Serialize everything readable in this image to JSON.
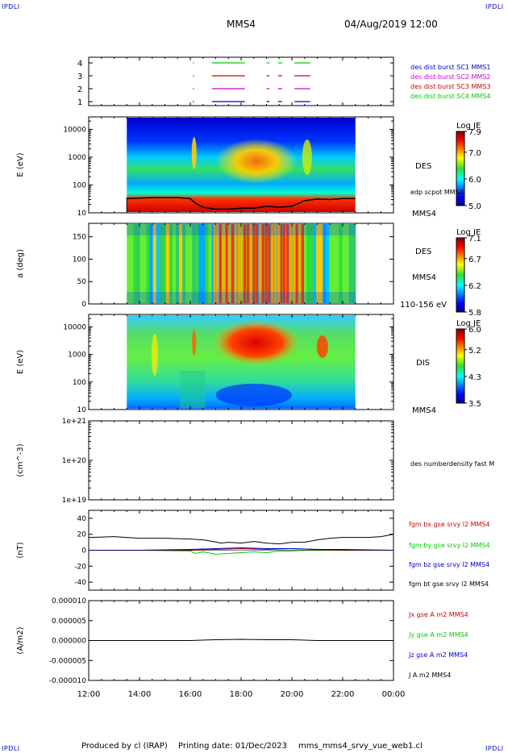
{
  "header": {
    "corner_label": "IPDLI",
    "spacecraft": "MMS4",
    "datetime": "04/Aug/2019 12:00"
  },
  "footer": {
    "produced_by": "Produced by cl (IRAP)",
    "printing_date": "Printing date: 01/Dec/2023",
    "file": "mms_mms4_srvy_vue_web1.cl"
  },
  "time_axis": {
    "ticks": [
      "12:00",
      "14:00",
      "16:00",
      "18:00",
      "20:00",
      "22:00",
      "00:00"
    ],
    "hours": [
      12,
      14,
      16,
      18,
      20,
      22,
      24
    ]
  },
  "colors": {
    "sc1": "#0000cc",
    "sc2": "#cc00cc",
    "sc3": "#cc0000",
    "sc4": "#00cc00",
    "bx": "#cc0000",
    "by": "#00cc00",
    "bz": "#0000cc",
    "bt": "#000000"
  },
  "panels": {
    "burst": {
      "yticks": [
        "1",
        "2",
        "3",
        "4"
      ],
      "legend": [
        "des dist burst SC1 MMS1",
        "des dist burst SC2 MMS2",
        "des dist burst SC3 MMS3",
        "des dist burst SC4 MMS4"
      ]
    },
    "des_energy": {
      "ylabel": "E (eV)",
      "yticks": [
        "10",
        "100",
        "1000",
        "10000"
      ],
      "label": "DES",
      "overlay_label": "edp scpot MMS4",
      "sc_label": "MMS4",
      "colorbar": {
        "title": "Log JE",
        "ticks": [
          "5.0",
          "6.0",
          "7.0",
          "7.9"
        ]
      }
    },
    "des_pitch": {
      "ylabel": "a (deg)",
      "yticks": [
        "0",
        "50",
        "100",
        "150"
      ],
      "label": "DES",
      "sc_label": "MMS4",
      "energy_range": "110-156 eV",
      "colorbar": {
        "title": "Log JE",
        "ticks": [
          "5.8",
          "6.2",
          "6.7",
          "7.1"
        ]
      }
    },
    "dis_energy": {
      "ylabel": "E (eV)",
      "yticks": [
        "10",
        "100",
        "1000",
        "10000"
      ],
      "label": "DIS",
      "sc_label": "MMS4",
      "colorbar": {
        "title": "Log JE",
        "ticks": [
          "3.5",
          "4.3",
          "5.2",
          "6.0"
        ]
      }
    },
    "density": {
      "ylabel": "(cm^-3)",
      "yticks": [
        "1e+19",
        "1e+20",
        "1e+21"
      ],
      "legend": "des numberdensity fast M"
    },
    "fgm": {
      "ylabel": "(nT)",
      "yticks": [
        "-40",
        "-20",
        "0",
        "20",
        "40"
      ],
      "legend": [
        "fgm bx gse srvy l2 MMS4",
        "fgm by gse srvy l2 MMS4",
        "fgm bz gse srvy l2 MMS4",
        "fgm bt gse srvy l2 MMS4"
      ]
    },
    "current": {
      "ylabel": "(A/m2)",
      "yticks": [
        "-0.000010",
        "-0.000005",
        "0.000000",
        "0.000005",
        "0.000010"
      ],
      "legend": [
        "Jx gse A m2 MMS4",
        "Jy gse A m2 MMS4",
        "Jz gse A m2 MMS4",
        "J A m2 MMS4"
      ]
    }
  },
  "chart_data": {
    "type": "line",
    "x_unit": "hour of day (04/Aug/2019)",
    "xlim": [
      12,
      24
    ],
    "burst_intervals": [
      [
        16.1,
        16.15
      ],
      [
        16.85,
        18.15
      ],
      [
        19.0,
        19.12
      ],
      [
        19.45,
        19.62
      ],
      [
        20.1,
        20.72
      ]
    ],
    "spectrogram_data_range": [
      13.5,
      22.5
    ],
    "fgm_bt": {
      "x": [
        12.0,
        13.0,
        14.0,
        15.0,
        16.0,
        16.5,
        16.9,
        17.2,
        17.5,
        18.0,
        18.5,
        19.0,
        19.5,
        20.0,
        20.5,
        21.0,
        21.5,
        22.0,
        23.0,
        23.5,
        24.0
      ],
      "y": [
        16,
        17,
        15,
        15,
        14,
        13,
        11,
        9,
        10,
        9,
        11,
        9,
        8,
        10,
        10,
        13,
        15,
        16,
        16,
        17,
        20
      ]
    },
    "fgm_bx": {
      "x": [
        12.0,
        14.0,
        16.0,
        17.0,
        18.0,
        19.0,
        20.0,
        21.0,
        22.0,
        24.0
      ],
      "y": [
        0,
        0,
        0,
        1,
        2,
        1,
        2,
        1,
        0,
        0
      ]
    },
    "fgm_by": {
      "x": [
        12.0,
        14.0,
        16.0,
        16.2,
        16.5,
        17.0,
        17.5,
        18.0,
        18.5,
        19.0,
        19.5,
        20.0,
        20.5,
        21.0,
        22.0,
        24.0
      ],
      "y": [
        0,
        0,
        -1,
        -4,
        -2,
        -5,
        -4,
        -3,
        -2,
        -3,
        -1,
        -1,
        0,
        0,
        0,
        0
      ]
    },
    "fgm_bz": {
      "x": [
        12.0,
        14.0,
        16.0,
        17.0,
        18.0,
        19.0,
        20.0,
        21.0,
        22.0,
        24.0
      ],
      "y": [
        0,
        0,
        1,
        2,
        3,
        2,
        2,
        1,
        1,
        0
      ]
    },
    "current_j": {
      "x": [
        12,
        16,
        17,
        18,
        19,
        20,
        21,
        22,
        24
      ],
      "y": [
        0,
        0,
        2e-07,
        3e-07,
        2e-07,
        2e-07,
        0,
        0,
        0
      ]
    },
    "des_scpot_ev": {
      "x": [
        13.5,
        14.5,
        15.5,
        16.0,
        16.2,
        16.5,
        17.0,
        17.5,
        18.0,
        18.5,
        19.0,
        19.5,
        20.0,
        20.5,
        21.0,
        21.5,
        22.0,
        22.5
      ],
      "y": [
        28,
        30,
        30,
        28,
        20,
        15,
        13,
        13,
        14,
        14,
        16,
        15,
        16,
        24,
        27,
        26,
        28,
        28
      ]
    }
  }
}
